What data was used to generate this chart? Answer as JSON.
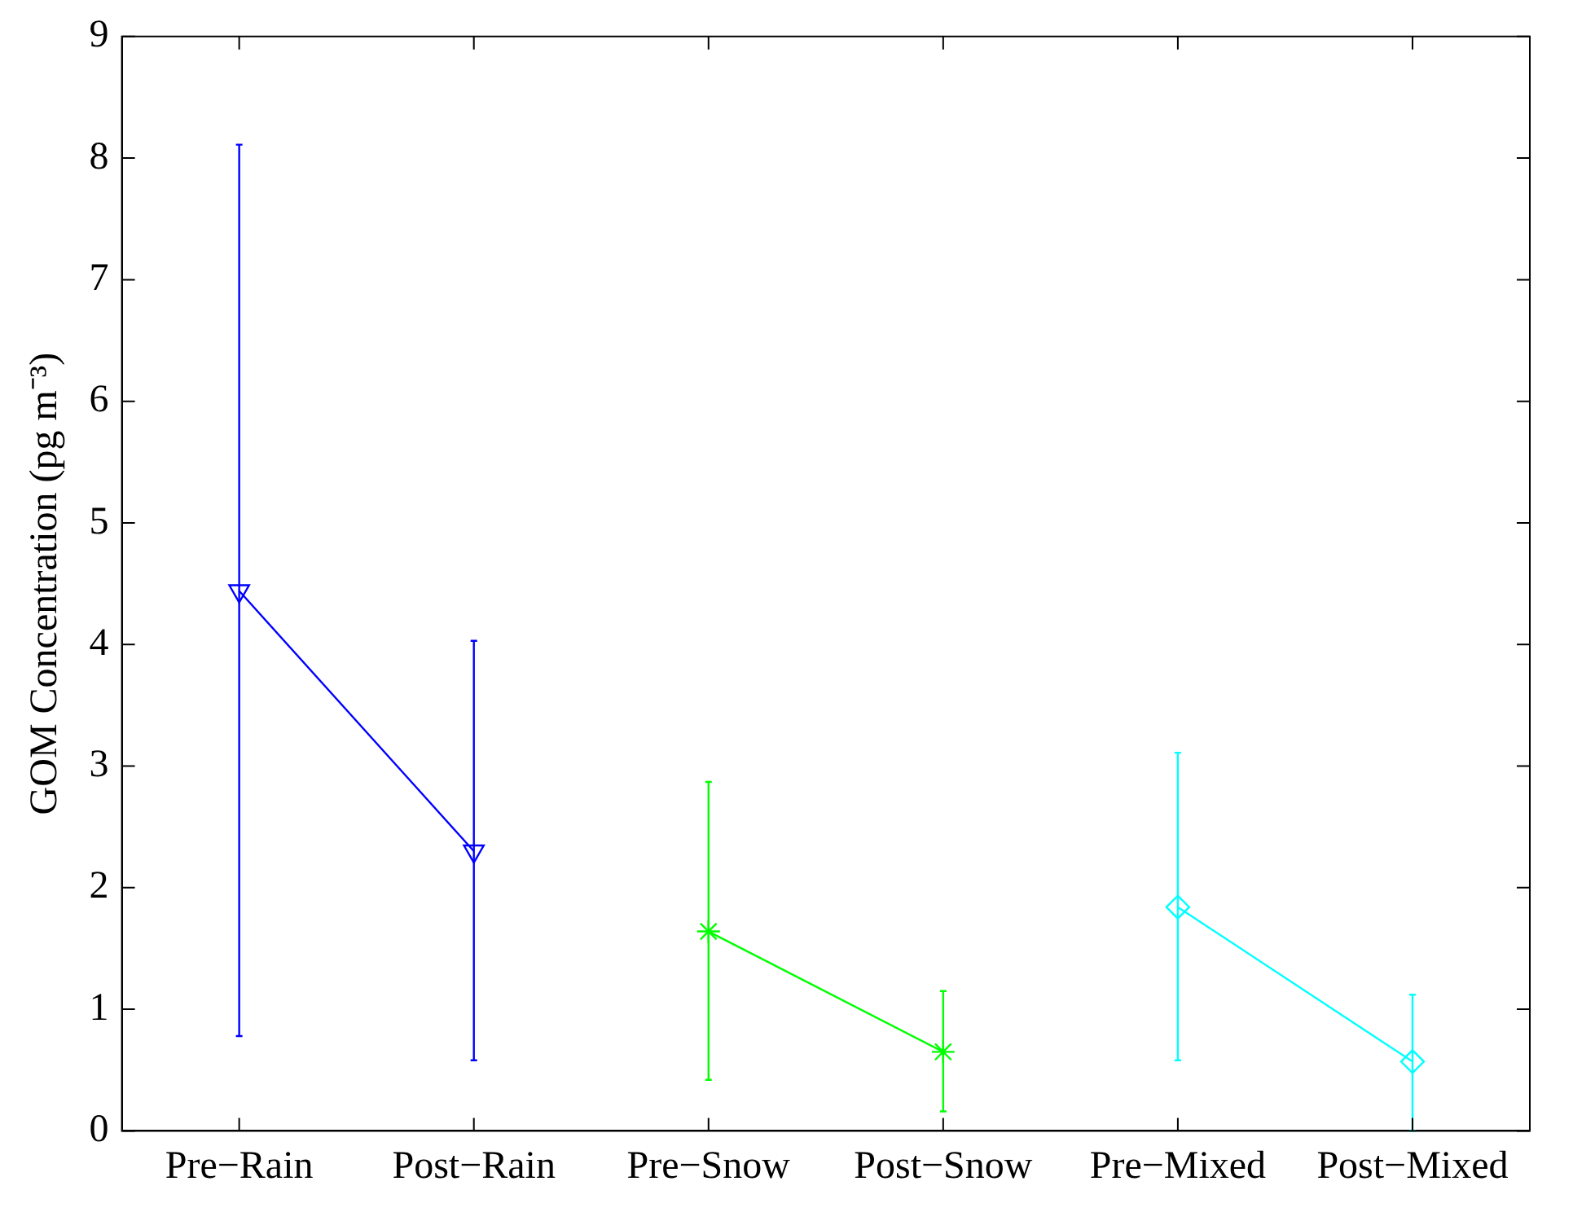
{
  "chart_data": {
    "type": "line",
    "ylabel": "GOM Concentration (pg m⁻³)",
    "categories": [
      "Pre−Rain",
      "Post−Rain",
      "Pre−Snow",
      "Post−Snow",
      "Pre−Mixed",
      "Post−Mixed"
    ],
    "series": [
      {
        "color": "#0000ff",
        "marker": "triangle_down",
        "values": [
          4.44,
          2.3,
          null,
          null,
          null,
          null
        ],
        "errors": [
          [
            0.78,
            8.11
          ],
          [
            0.58,
            4.03
          ],
          null,
          null,
          null,
          null
        ]
      },
      {
        "color": "#00ff00",
        "marker": "cross",
        "values": [
          null,
          null,
          1.64,
          0.65,
          null,
          null
        ],
        "errors": [
          null,
          null,
          [
            0.42,
            2.87
          ],
          [
            0.16,
            1.15
          ],
          null,
          null
        ]
      },
      {
        "color": "#00ffff",
        "marker": "diamond",
        "values": [
          null,
          null,
          null,
          null,
          1.84,
          0.57
        ],
        "errors": [
          null,
          null,
          null,
          null,
          [
            0.58,
            3.11
          ],
          [
            0.0,
            1.12
          ]
        ]
      }
    ],
    "ylim": [
      0,
      9
    ],
    "yticks": [
      0,
      1,
      2,
      3,
      4,
      5,
      6,
      7,
      8,
      9
    ],
    "grid": false,
    "legend": false,
    "line_style": "solid"
  }
}
